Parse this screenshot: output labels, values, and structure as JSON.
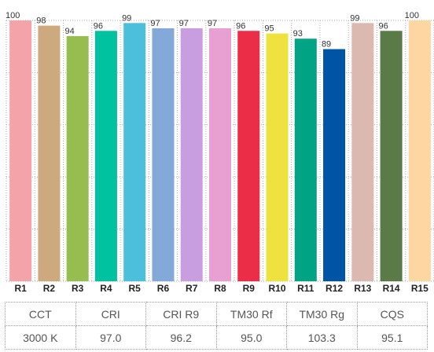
{
  "chart_data": {
    "type": "bar",
    "categories": [
      "R1",
      "R2",
      "R3",
      "R4",
      "R5",
      "R6",
      "R7",
      "R8",
      "R9",
      "R10",
      "R11",
      "R12",
      "R13",
      "R14",
      "R15"
    ],
    "values": [
      100,
      98,
      94,
      96,
      99,
      97,
      97,
      97,
      96,
      95,
      93,
      89,
      99,
      96,
      100
    ],
    "colors": [
      "#f4a3a8",
      "#cfa97e",
      "#95bd4f",
      "#00c1a0",
      "#4bbfdb",
      "#83a9d8",
      "#c99ee0",
      "#e8a0d2",
      "#ec2d47",
      "#eee33e",
      "#00a383",
      "#0054a6",
      "#dbb8b0",
      "#5a7a47",
      "#fdd6a2"
    ],
    "ylim": [
      0,
      100
    ],
    "grid": true,
    "title": "",
    "xlabel": "",
    "ylabel": ""
  },
  "metrics_table": {
    "headers": [
      "CCT",
      "CRI",
      "CRI R9",
      "TM30 Rf",
      "TM30 Rg",
      "CQS"
    ],
    "values": [
      "3000 K",
      "97.0",
      "96.2",
      "95.0",
      "103.3",
      "95.1"
    ]
  }
}
